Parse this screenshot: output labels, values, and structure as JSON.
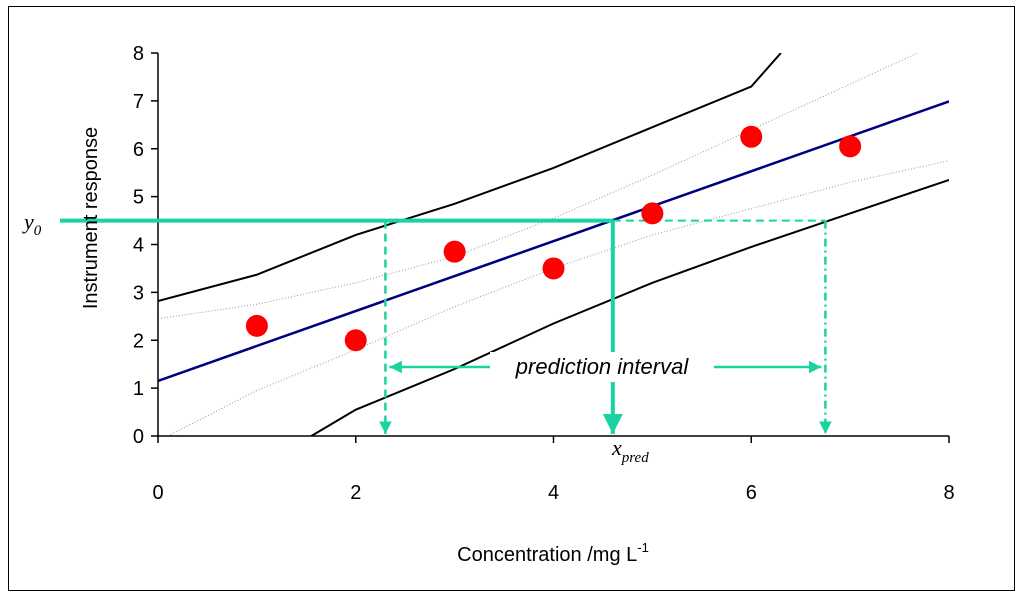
{
  "chart_data": {
    "type": "scatter",
    "title": "",
    "xlabel": "Concentration /mg L",
    "xlabel_sup": "-1",
    "ylabel": "Instrument response",
    "xlim": [
      0,
      8
    ],
    "ylim": [
      0,
      8
    ],
    "x_ticks": [
      "0",
      "2",
      "4",
      "6",
      "8"
    ],
    "y_ticks": [
      "0",
      "1",
      "2",
      "3",
      "4",
      "5",
      "6",
      "7",
      "8"
    ],
    "grid": false,
    "points": [
      {
        "x": 1,
        "y": 2.3
      },
      {
        "x": 2,
        "y": 2.0
      },
      {
        "x": 3,
        "y": 3.85
      },
      {
        "x": 4,
        "y": 3.5
      },
      {
        "x": 5,
        "y": 4.65
      },
      {
        "x": 6,
        "y": 6.25
      },
      {
        "x": 7,
        "y": 6.05
      }
    ],
    "regression_line": {
      "intercept": 1.15,
      "slope": 0.73
    },
    "prediction_band_upper": [
      [
        0,
        2.82
      ],
      [
        1,
        3.37
      ],
      [
        2,
        4.2
      ],
      [
        3,
        4.85
      ],
      [
        4,
        5.6
      ],
      [
        5,
        6.45
      ],
      [
        6,
        7.3
      ],
      [
        6.3,
        8.0
      ]
    ],
    "prediction_band_lower": [
      [
        1.55,
        0
      ],
      [
        2,
        0.55
      ],
      [
        3,
        1.4
      ],
      [
        4,
        2.35
      ],
      [
        5,
        3.2
      ],
      [
        6,
        3.95
      ],
      [
        7,
        4.65
      ],
      [
        8,
        5.35
      ]
    ],
    "confidence_band_upper": [
      [
        0,
        2.45
      ],
      [
        1,
        2.75
      ],
      [
        2,
        3.2
      ],
      [
        3,
        3.75
      ],
      [
        4,
        4.55
      ],
      [
        5,
        5.45
      ],
      [
        6,
        6.4
      ],
      [
        7,
        7.35
      ],
      [
        8,
        8.3
      ]
    ],
    "confidence_band_lower": [
      [
        0.1,
        0
      ],
      [
        1,
        0.95
      ],
      [
        2,
        1.8
      ],
      [
        3,
        2.7
      ],
      [
        4,
        3.5
      ],
      [
        5,
        4.2
      ],
      [
        6,
        4.75
      ],
      [
        7,
        5.3
      ],
      [
        8,
        5.75
      ]
    ],
    "y0": 4.5,
    "x_pred": 4.6,
    "x_low": 2.3,
    "x_high": 6.75,
    "colors": {
      "points": "#ff0000",
      "regression": "#000080",
      "band": "#000000",
      "confidence": "#999999",
      "annotation": "#1ad3a0"
    }
  },
  "annotations": {
    "y0_label": "y",
    "y0_sub": "0",
    "xpred_label": "x",
    "xpred_sub": "pred",
    "interval_label": "prediction interval"
  }
}
